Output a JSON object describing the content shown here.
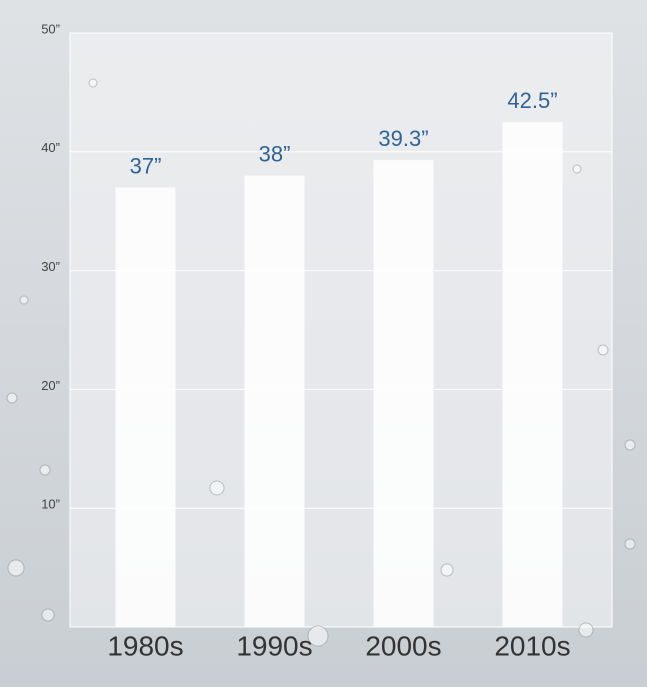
{
  "chart_data": {
    "type": "bar",
    "categories": [
      "1980s",
      "1990s",
      "2000s",
      "2010s"
    ],
    "values": [
      37,
      38,
      39.3,
      42.5
    ],
    "value_labels": [
      "37”",
      "38”",
      "39.3”",
      "42.5”"
    ],
    "color": "#ffffff",
    "ylim": [
      0,
      50
    ],
    "yticks": [
      {
        "value": 10,
        "label": "10”"
      },
      {
        "value": 20,
        "label": "20”"
      },
      {
        "value": 30,
        "label": "30”"
      },
      {
        "value": 40,
        "label": "40”"
      },
      {
        "value": 50,
        "label": "50”"
      }
    ],
    "grid": true
  }
}
